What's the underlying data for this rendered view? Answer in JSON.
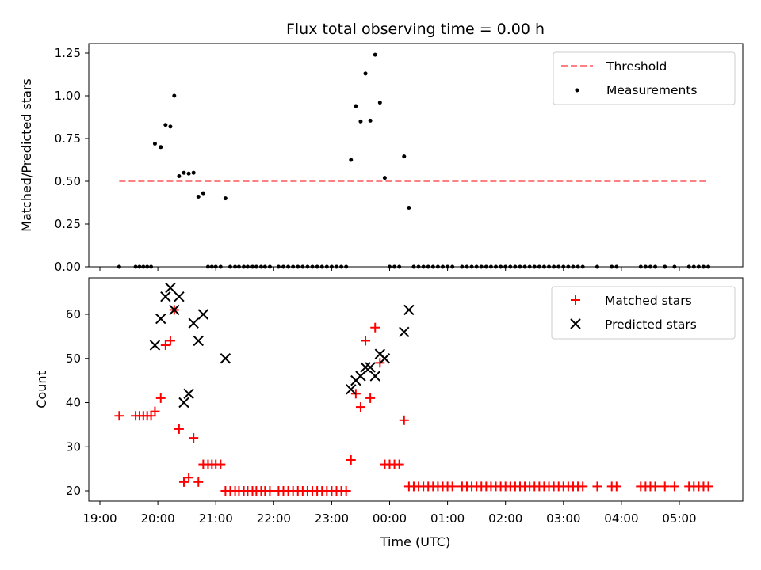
{
  "chart_data": [
    {
      "type": "scatter",
      "title": "Flux total observing time = 0.00 h",
      "xlabel": "",
      "ylabel": "Matched/Predicted stars",
      "xlim": [
        "19:10",
        "05:58"
      ],
      "ylim": [
        0,
        1.3
      ],
      "yticks": [
        0.0,
        0.25,
        0.5,
        0.75,
        1.0,
        1.25
      ],
      "ytick_labels": [
        "0.00",
        "0.25",
        "0.50",
        "0.75",
        "1.00",
        "1.25"
      ],
      "legend_position": "top-right",
      "threshold": {
        "name": "Threshold",
        "value": 0.5,
        "x_start": "19:20",
        "x_end": "05:30",
        "color": "#ff8080",
        "style": "dashed"
      },
      "series": [
        {
          "name": "Measurements",
          "color": "#000000",
          "marker": "dot",
          "points": [
            [
              "19:20",
              0
            ],
            [
              "19:37",
              0
            ],
            [
              "19:41",
              0
            ],
            [
              "19:45",
              0
            ],
            [
              "19:49",
              0
            ],
            [
              "19:53",
              0
            ],
            [
              "19:57",
              0.72
            ],
            [
              "20:03",
              0.7
            ],
            [
              "20:08",
              0.83
            ],
            [
              "20:13",
              0.82
            ],
            [
              "20:17",
              1.0
            ],
            [
              "20:22",
              0.53
            ],
            [
              "20:27",
              0.55
            ],
            [
              "20:32",
              0.545
            ],
            [
              "20:37",
              0.55
            ],
            [
              "20:42",
              0.41
            ],
            [
              "20:47",
              0.43
            ],
            [
              "20:52",
              0
            ],
            [
              "20:56",
              0
            ],
            [
              "21:00",
              0
            ],
            [
              "21:05",
              0
            ],
            [
              "21:10",
              0.4
            ],
            [
              "21:15",
              0
            ],
            [
              "21:20",
              0
            ],
            [
              "21:24",
              0
            ],
            [
              "21:29",
              0
            ],
            [
              "21:33",
              0
            ],
            [
              "21:38",
              0
            ],
            [
              "21:42",
              0
            ],
            [
              "21:47",
              0
            ],
            [
              "21:51",
              0
            ],
            [
              "21:56",
              0
            ],
            [
              "22:05",
              0
            ],
            [
              "22:10",
              0
            ],
            [
              "22:15",
              0
            ],
            [
              "22:20",
              0
            ],
            [
              "22:25",
              0
            ],
            [
              "22:30",
              0
            ],
            [
              "22:35",
              0
            ],
            [
              "22:40",
              0
            ],
            [
              "22:45",
              0
            ],
            [
              "22:50",
              0
            ],
            [
              "22:55",
              0
            ],
            [
              "23:00",
              0
            ],
            [
              "23:05",
              0
            ],
            [
              "23:10",
              0
            ],
            [
              "23:15",
              0
            ],
            [
              "23:20",
              0.625
            ],
            [
              "23:25",
              0.94
            ],
            [
              "23:30",
              0.85
            ],
            [
              "23:35",
              1.13
            ],
            [
              "23:40",
              0.855
            ],
            [
              "23:45",
              1.24
            ],
            [
              "23:50",
              0.96
            ],
            [
              "23:55",
              0.52
            ],
            [
              "00:00",
              0
            ],
            [
              "00:05",
              0
            ],
            [
              "00:10",
              0
            ],
            [
              "00:15",
              0.645
            ],
            [
              "00:20",
              0.345
            ],
            [
              "00:25",
              0
            ],
            [
              "00:30",
              0
            ],
            [
              "00:35",
              0
            ],
            [
              "00:40",
              0
            ],
            [
              "00:45",
              0
            ],
            [
              "00:50",
              0
            ],
            [
              "00:55",
              0
            ],
            [
              "01:00",
              0
            ],
            [
              "01:05",
              0
            ],
            [
              "01:15",
              0
            ],
            [
              "01:20",
              0
            ],
            [
              "01:25",
              0
            ],
            [
              "01:30",
              0
            ],
            [
              "01:35",
              0
            ],
            [
              "01:40",
              0
            ],
            [
              "01:45",
              0
            ],
            [
              "01:50",
              0
            ],
            [
              "01:55",
              0
            ],
            [
              "02:00",
              0
            ],
            [
              "02:05",
              0
            ],
            [
              "02:10",
              0
            ],
            [
              "02:15",
              0
            ],
            [
              "02:20",
              0
            ],
            [
              "02:25",
              0
            ],
            [
              "02:30",
              0
            ],
            [
              "02:35",
              0
            ],
            [
              "02:40",
              0
            ],
            [
              "02:45",
              0
            ],
            [
              "02:50",
              0
            ],
            [
              "02:55",
              0
            ],
            [
              "03:00",
              0
            ],
            [
              "03:05",
              0
            ],
            [
              "03:10",
              0
            ],
            [
              "03:15",
              0
            ],
            [
              "03:20",
              0
            ],
            [
              "03:35",
              0
            ],
            [
              "03:50",
              0
            ],
            [
              "03:55",
              0
            ],
            [
              "04:20",
              0
            ],
            [
              "04:25",
              0
            ],
            [
              "04:30",
              0
            ],
            [
              "04:35",
              0
            ],
            [
              "04:45",
              0
            ],
            [
              "04:55",
              0
            ],
            [
              "05:10",
              0
            ],
            [
              "05:15",
              0
            ],
            [
              "05:20",
              0
            ],
            [
              "05:25",
              0
            ],
            [
              "05:30",
              0
            ]
          ]
        }
      ]
    },
    {
      "type": "scatter",
      "title": "",
      "xlabel": "Time (UTC)",
      "ylabel": "Count",
      "xlim": [
        "19:10",
        "05:58"
      ],
      "ylim": [
        18,
        68
      ],
      "yticks": [
        20,
        30,
        40,
        50,
        60
      ],
      "ytick_labels": [
        "20",
        "30",
        "40",
        "50",
        "60"
      ],
      "xticks": [
        "19:00",
        "20:00",
        "21:00",
        "22:00",
        "23:00",
        "00:00",
        "01:00",
        "02:00",
        "03:00",
        "04:00",
        "05:00"
      ],
      "xtick_labels": [
        "19:00",
        "20:00",
        "21:00",
        "22:00",
        "23:00",
        "00:00",
        "01:00",
        "02:00",
        "03:00",
        "04:00",
        "05:00"
      ],
      "legend_position": "top-right",
      "series": [
        {
          "name": "Matched stars",
          "color": "#ff0000",
          "marker": "plus",
          "points": [
            [
              "19:20",
              37
            ],
            [
              "19:37",
              37
            ],
            [
              "19:41",
              37
            ],
            [
              "19:45",
              37
            ],
            [
              "19:49",
              37
            ],
            [
              "19:53",
              37
            ],
            [
              "19:57",
              38
            ],
            [
              "20:03",
              41
            ],
            [
              "20:08",
              53
            ],
            [
              "20:13",
              54
            ],
            [
              "20:17",
              61
            ],
            [
              "20:22",
              34
            ],
            [
              "20:27",
              22
            ],
            [
              "20:32",
              23
            ],
            [
              "20:37",
              32
            ],
            [
              "20:42",
              22
            ],
            [
              "20:47",
              26
            ],
            [
              "20:52",
              26
            ],
            [
              "20:56",
              26
            ],
            [
              "21:00",
              26
            ],
            [
              "21:05",
              26
            ],
            [
              "21:10",
              20
            ],
            [
              "21:15",
              20
            ],
            [
              "21:20",
              20
            ],
            [
              "21:24",
              20
            ],
            [
              "21:29",
              20
            ],
            [
              "21:33",
              20
            ],
            [
              "21:38",
              20
            ],
            [
              "21:42",
              20
            ],
            [
              "21:47",
              20
            ],
            [
              "21:51",
              20
            ],
            [
              "21:56",
              20
            ],
            [
              "22:05",
              20
            ],
            [
              "22:10",
              20
            ],
            [
              "22:15",
              20
            ],
            [
              "22:20",
              20
            ],
            [
              "22:25",
              20
            ],
            [
              "22:30",
              20
            ],
            [
              "22:35",
              20
            ],
            [
              "22:40",
              20
            ],
            [
              "22:45",
              20
            ],
            [
              "22:50",
              20
            ],
            [
              "22:55",
              20
            ],
            [
              "23:00",
              20
            ],
            [
              "23:05",
              20
            ],
            [
              "23:10",
              20
            ],
            [
              "23:15",
              20
            ],
            [
              "23:20",
              27
            ],
            [
              "23:25",
              42
            ],
            [
              "23:30",
              39
            ],
            [
              "23:35",
              54
            ],
            [
              "23:40",
              41
            ],
            [
              "23:45",
              57
            ],
            [
              "23:50",
              49
            ],
            [
              "23:55",
              26
            ],
            [
              "00:00",
              26
            ],
            [
              "00:05",
              26
            ],
            [
              "00:10",
              26
            ],
            [
              "00:15",
              36
            ],
            [
              "00:20",
              21
            ],
            [
              "00:25",
              21
            ],
            [
              "00:30",
              21
            ],
            [
              "00:35",
              21
            ],
            [
              "00:40",
              21
            ],
            [
              "00:45",
              21
            ],
            [
              "00:50",
              21
            ],
            [
              "00:55",
              21
            ],
            [
              "01:00",
              21
            ],
            [
              "01:05",
              21
            ],
            [
              "01:15",
              21
            ],
            [
              "01:20",
              21
            ],
            [
              "01:25",
              21
            ],
            [
              "01:30",
              21
            ],
            [
              "01:35",
              21
            ],
            [
              "01:40",
              21
            ],
            [
              "01:45",
              21
            ],
            [
              "01:50",
              21
            ],
            [
              "01:55",
              21
            ],
            [
              "02:00",
              21
            ],
            [
              "02:05",
              21
            ],
            [
              "02:10",
              21
            ],
            [
              "02:15",
              21
            ],
            [
              "02:20",
              21
            ],
            [
              "02:25",
              21
            ],
            [
              "02:30",
              21
            ],
            [
              "02:35",
              21
            ],
            [
              "02:40",
              21
            ],
            [
              "02:45",
              21
            ],
            [
              "02:50",
              21
            ],
            [
              "02:55",
              21
            ],
            [
              "03:00",
              21
            ],
            [
              "03:05",
              21
            ],
            [
              "03:10",
              21
            ],
            [
              "03:15",
              21
            ],
            [
              "03:20",
              21
            ],
            [
              "03:35",
              21
            ],
            [
              "03:50",
              21
            ],
            [
              "03:55",
              21
            ],
            [
              "04:20",
              21
            ],
            [
              "04:25",
              21
            ],
            [
              "04:30",
              21
            ],
            [
              "04:35",
              21
            ],
            [
              "04:45",
              21
            ],
            [
              "04:55",
              21
            ],
            [
              "05:10",
              21
            ],
            [
              "05:15",
              21
            ],
            [
              "05:20",
              21
            ],
            [
              "05:25",
              21
            ],
            [
              "05:30",
              21
            ]
          ]
        },
        {
          "name": "Predicted stars",
          "color": "#000000",
          "marker": "x",
          "points": [
            [
              "19:57",
              53
            ],
            [
              "20:03",
              59
            ],
            [
              "20:08",
              64
            ],
            [
              "20:13",
              66
            ],
            [
              "20:17",
              61
            ],
            [
              "20:22",
              64
            ],
            [
              "20:27",
              40
            ],
            [
              "20:32",
              42
            ],
            [
              "20:37",
              58
            ],
            [
              "20:42",
              54
            ],
            [
              "20:47",
              60
            ],
            [
              "21:10",
              50
            ],
            [
              "23:20",
              43
            ],
            [
              "23:25",
              45
            ],
            [
              "23:30",
              46
            ],
            [
              "23:35",
              48
            ],
            [
              "23:40",
              48
            ],
            [
              "23:45",
              46
            ],
            [
              "23:50",
              51
            ],
            [
              "23:55",
              50
            ],
            [
              "00:15",
              56
            ],
            [
              "00:20",
              61
            ]
          ]
        }
      ]
    }
  ]
}
